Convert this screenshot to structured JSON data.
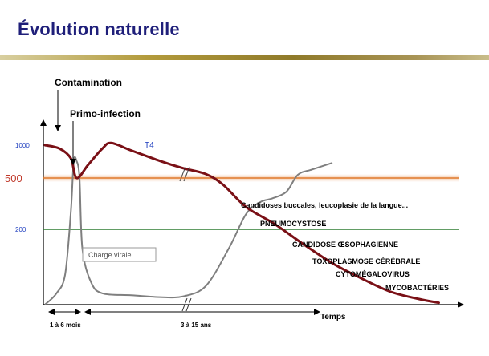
{
  "slide": {
    "title": "Évolution naturelle"
  },
  "chart_data": {
    "type": "line",
    "title": "Évolution naturelle",
    "xlabel": "Temps",
    "ylabel": "",
    "y_ticks": [
      {
        "value": 1000,
        "label": "1000",
        "color": "#1f3fbf"
      },
      {
        "value": 500,
        "label": "500",
        "color": "#c0392b"
      },
      {
        "value": 200,
        "label": "200",
        "color": "#1f3fbf"
      }
    ],
    "reference_lines": [
      {
        "value": 500,
        "color": "#e07a2c"
      },
      {
        "value": 200,
        "color": "#2e7d32"
      }
    ],
    "time_periods": [
      {
        "label": "1 à 6 mois"
      },
      {
        "label": "3 à 15 ans"
      }
    ],
    "series": [
      {
        "name": "T4",
        "color": "#7a1016",
        "points": [
          [
            0.0,
            1000
          ],
          [
            0.05,
            950
          ],
          [
            0.09,
            800
          ],
          [
            0.11,
            500
          ],
          [
            0.15,
            700
          ],
          [
            0.2,
            950
          ],
          [
            0.23,
            1030
          ],
          [
            0.3,
            920
          ],
          [
            0.4,
            760
          ],
          [
            0.48,
            650
          ],
          [
            0.56,
            560
          ],
          [
            0.62,
            460
          ],
          [
            0.7,
            330
          ],
          [
            0.8,
            230
          ],
          [
            0.9,
            160
          ],
          [
            1.0,
            110
          ],
          [
            1.1,
            70
          ],
          [
            1.2,
            35
          ],
          [
            1.3,
            15
          ],
          [
            1.37,
            5
          ]
        ]
      },
      {
        "name": "Charge virale",
        "color": "#7f7f7f",
        "points": [
          [
            0.0,
            0
          ],
          [
            0.04,
            30
          ],
          [
            0.07,
            80
          ],
          [
            0.09,
            300
          ],
          [
            0.1,
            750
          ],
          [
            0.11,
            760
          ],
          [
            0.12,
            500
          ],
          [
            0.13,
            150
          ],
          [
            0.16,
            60
          ],
          [
            0.2,
            30
          ],
          [
            0.3,
            25
          ],
          [
            0.4,
            20
          ],
          [
            0.48,
            22
          ],
          [
            0.56,
            50
          ],
          [
            0.64,
            150
          ],
          [
            0.7,
            290
          ],
          [
            0.75,
            360
          ],
          [
            0.79,
            380
          ],
          [
            0.84,
            420
          ],
          [
            0.88,
            550
          ],
          [
            0.93,
            630
          ],
          [
            1.0,
            730
          ]
        ]
      }
    ],
    "series_labels": [
      {
        "series": "T4",
        "text": "T4"
      },
      {
        "series": "Charge virale",
        "text": "Charge virale"
      }
    ],
    "annotations": [
      {
        "text": "Contamination"
      },
      {
        "text": "Primo-infection"
      },
      {
        "text": "Candidoses buccales, leucoplasie de la langue..."
      },
      {
        "text": "PNEUMOCYSTOSE"
      },
      {
        "text": "CANDIDOSE ŒSOPHAGIENNE"
      },
      {
        "text": "TOXOPLASMOSE CÉRÉBRALE"
      },
      {
        "text": "CYTOMÉGALOVIRUS"
      },
      {
        "text": "MYCOBACTÉRIES"
      }
    ]
  }
}
